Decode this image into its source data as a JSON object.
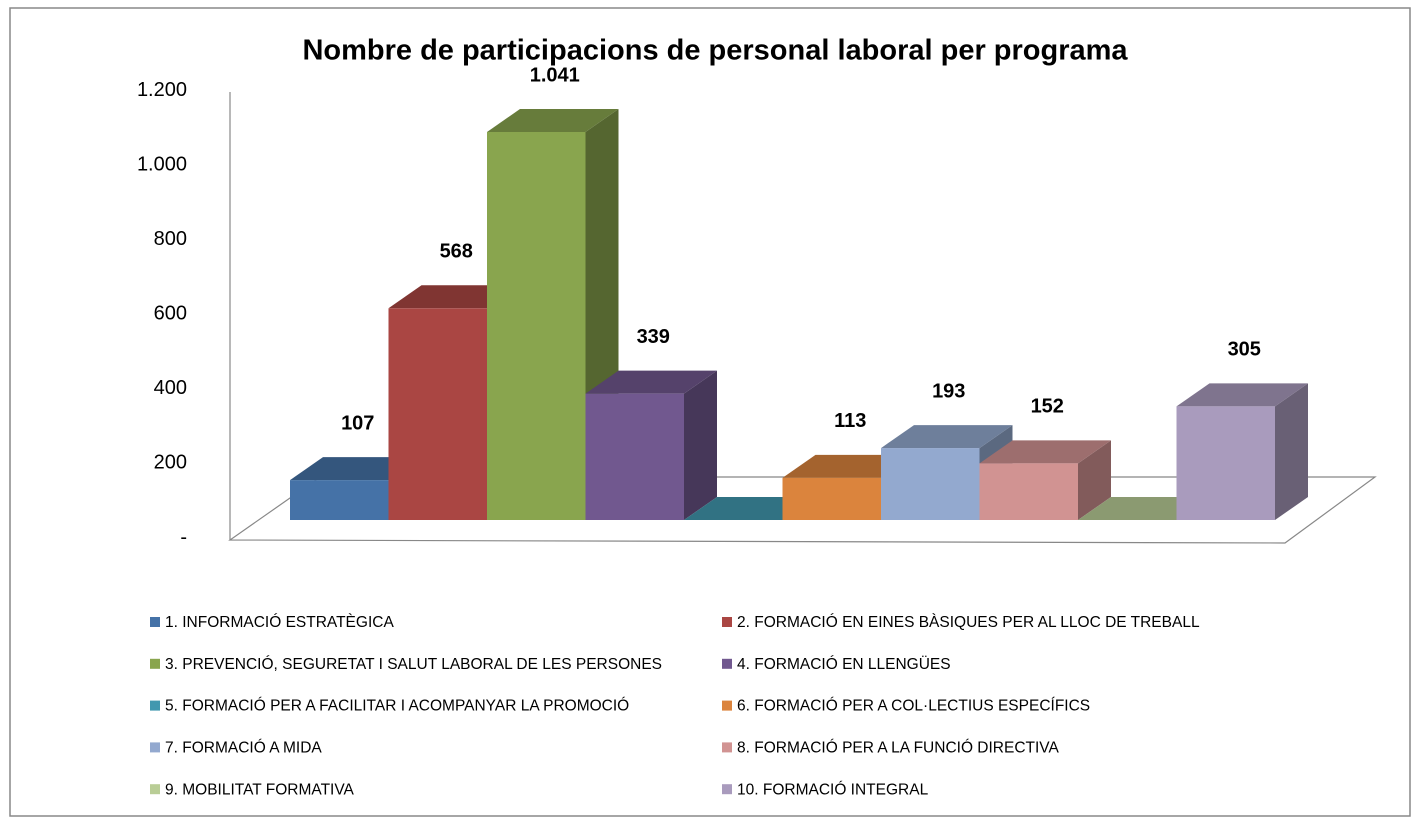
{
  "chart_data": {
    "type": "bar",
    "title": "Nombre de participacions de personal laboral per programa",
    "categories": [
      "1. INFORMACIÓ ESTRATÈGICA",
      "2. FORMACIÓ EN EINES BÀSIQUES PER AL LLOC DE TREBALL",
      "3. PREVENCIÓ, SEGURETAT I SALUT LABORAL DE LES PERSONES",
      "4. FORMACIÓ EN LLENGÜES",
      "5. FORMACIÓ PER A FACILITAR I ACOMPANYAR LA PROMOCIÓ",
      "6. FORMACIÓ PER A COL·LECTIUS ESPECÍFICS",
      "7. FORMACIÓ A MIDA",
      "8. FORMACIÓ PER A LA FUNCIÓ DIRECTIVA",
      "9. MOBILITAT FORMATIVA",
      "10. FORMACIÓ INTEGRAL"
    ],
    "values": [
      107,
      568,
      1041,
      339,
      0,
      113,
      193,
      152,
      0,
      305
    ],
    "value_labels": [
      "107",
      "568",
      "1.041",
      "339",
      null,
      "113",
      "193",
      "152",
      null,
      "305"
    ],
    "colors": [
      "#4572a7",
      "#aa4643",
      "#89a54e",
      "#71588f",
      "#4198af",
      "#db843d",
      "#93a9cf",
      "#d19392",
      "#b9cd96",
      "#a99bbd"
    ],
    "ylim": [
      0,
      1200
    ],
    "yticks": [
      {
        "value": 0,
        "label": "-"
      },
      200,
      400,
      600,
      800,
      {
        "value": 1000,
        "label": "1.000"
      },
      {
        "value": 1200,
        "label": "1.200"
      }
    ]
  }
}
